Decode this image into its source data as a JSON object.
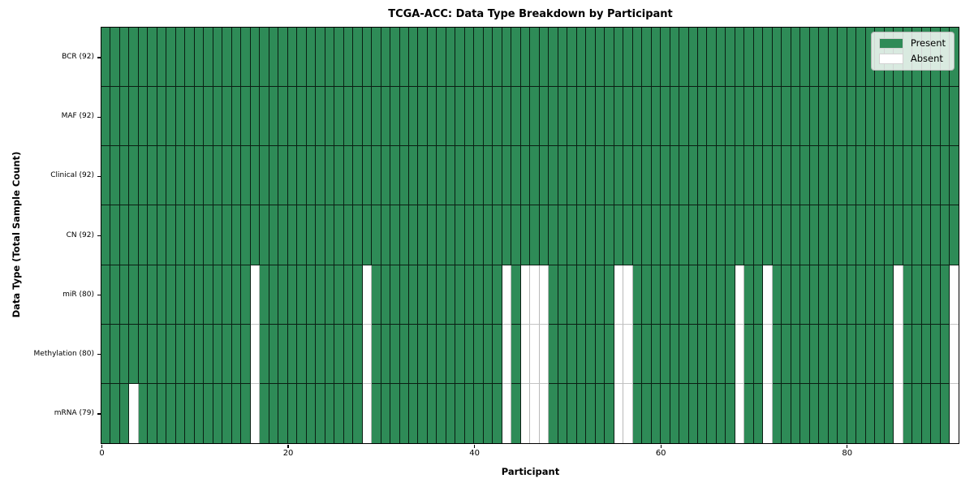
{
  "chart_data": {
    "type": "heatmap",
    "title": "TCGA-ACC: Data Type Breakdown by Participant",
    "xlabel": "Participant",
    "ylabel": "Data Type (Total Sample Count)",
    "n_participants": 92,
    "x_ticks": [
      0,
      20,
      40,
      60,
      80
    ],
    "grid": true,
    "legend_position": "upper right",
    "colors": {
      "present": "#2e8b57",
      "absent": "#ffffff",
      "grid_on_present": "#1c1c1c",
      "grid_on_absent": "#bbbbbb",
      "spine": "#000000"
    },
    "legend": [
      {
        "label": "Present",
        "color": "#2e8b57"
      },
      {
        "label": "Absent",
        "color": "#ffffff"
      }
    ],
    "rows": [
      {
        "label": "BCR (92)",
        "data_type": "BCR",
        "present_count": 92,
        "absent_participants": []
      },
      {
        "label": "MAF (92)",
        "data_type": "MAF",
        "present_count": 92,
        "absent_participants": []
      },
      {
        "label": "Clinical (92)",
        "data_type": "Clinical",
        "present_count": 92,
        "absent_participants": []
      },
      {
        "label": "CN (92)",
        "data_type": "CN",
        "present_count": 92,
        "absent_participants": []
      },
      {
        "label": "miR (80)",
        "data_type": "miR",
        "present_count": 80,
        "absent_participants": [
          16,
          28,
          43,
          45,
          46,
          47,
          55,
          56,
          68,
          71,
          85,
          91
        ]
      },
      {
        "label": "Methylation (80)",
        "data_type": "Methylation",
        "present_count": 80,
        "absent_participants": [
          16,
          28,
          43,
          45,
          46,
          47,
          55,
          56,
          68,
          71,
          85,
          91
        ]
      },
      {
        "label": "mRNA (79)",
        "data_type": "mRNA",
        "present_count": 79,
        "absent_participants": [
          3,
          16,
          28,
          43,
          45,
          46,
          47,
          55,
          56,
          68,
          71,
          85,
          91
        ]
      }
    ]
  }
}
